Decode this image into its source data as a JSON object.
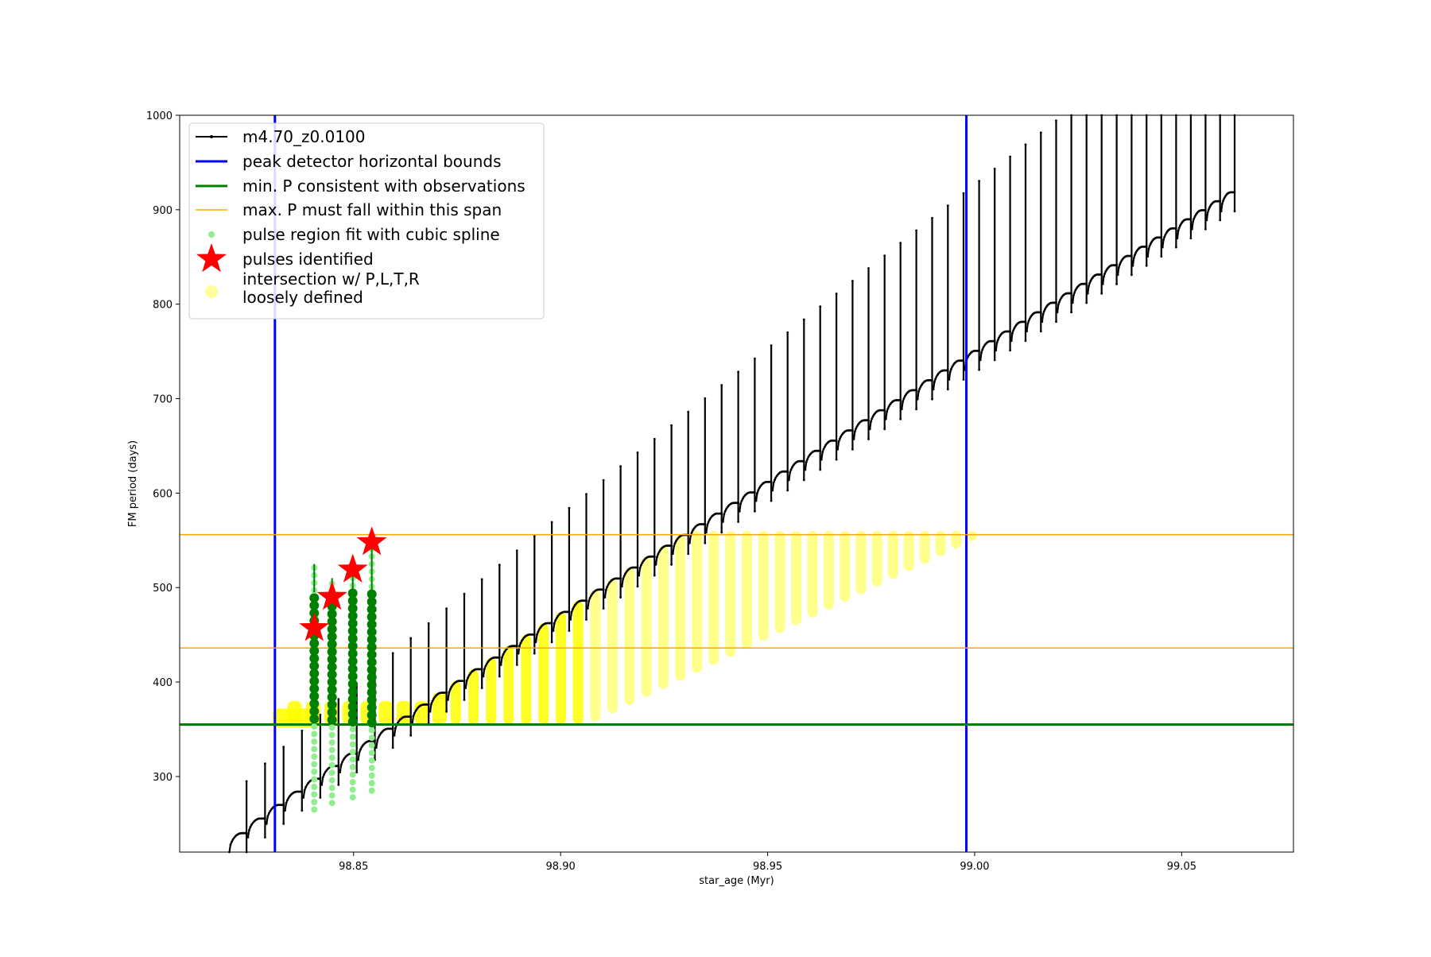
{
  "chart_data": {
    "type": "line",
    "xlabel": "star_age (Myr)",
    "ylabel": "FM period (days)",
    "xlim": [
      98.808,
      99.077
    ],
    "ylim": [
      220,
      1000
    ],
    "xticks": [
      98.85,
      98.9,
      98.95,
      99.0,
      99.05
    ],
    "xtick_labels": [
      "98.85",
      "98.90",
      "98.95",
      "99.00",
      "99.05"
    ],
    "yticks": [
      300,
      400,
      500,
      600,
      700,
      800,
      900,
      1000
    ],
    "ytick_labels": [
      "300",
      "400",
      "500",
      "600",
      "700",
      "800",
      "900",
      "1000"
    ],
    "grid": false,
    "legend_position": "upper-left",
    "legend": [
      {
        "label": "m4.70_z0.0100",
        "marker": "black-line-dot",
        "color": "#000000"
      },
      {
        "label": "peak detector horizontal bounds",
        "marker": "line",
        "color": "#0000ff"
      },
      {
        "label": "min. P consistent with observations",
        "marker": "line",
        "color": "#008000"
      },
      {
        "label": "max. P must fall within this span",
        "marker": "line",
        "color": "#ffa500"
      },
      {
        "label": "pulse region fit with cubic spline",
        "marker": "dot",
        "color": "#90ee90"
      },
      {
        "label": "pulses identified",
        "marker": "star",
        "color": "#ff0000"
      },
      {
        "label": "intersection w/ P,L,T,R\nloosely defined",
        "marker": "dot",
        "color": "#ffff99"
      }
    ],
    "vertical_lines": [
      98.831,
      98.998
    ],
    "min_period": 355,
    "max_period_span": [
      436,
      556
    ],
    "series_model": {
      "name": "m4.70_z0.0100",
      "age_start": 98.82,
      "age_end": 99.062,
      "pulse_spacing_start": 0.0045,
      "pulse_spacing_end": 0.0035,
      "base_start": 240,
      "base_end": 925,
      "peak_start": 295,
      "peak_end": 1000
    },
    "pulses_identified": [
      {
        "x": 98.8405,
        "y": 457
      },
      {
        "x": 98.8448,
        "y": 490
      },
      {
        "x": 98.8498,
        "y": 519
      },
      {
        "x": 98.8544,
        "y": 548
      }
    ],
    "colors": {
      "model": "#000000",
      "bounds": "#0000ff",
      "min_p": "#008000",
      "max_p": "#ffa500",
      "spline": "#90ee90",
      "spline_dark": "#008000",
      "stars": "#ff0000",
      "intersection": "#ffff00"
    }
  }
}
